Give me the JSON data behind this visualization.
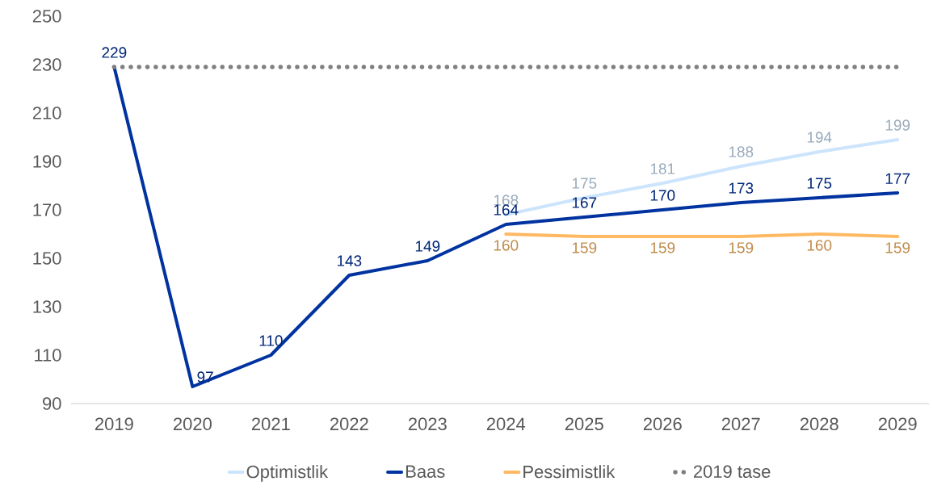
{
  "chart_data": {
    "type": "line",
    "categories": [
      "2019",
      "2020",
      "2021",
      "2022",
      "2023",
      "2024",
      "2025",
      "2026",
      "2027",
      "2028",
      "2029"
    ],
    "series": [
      {
        "name": "Optimistlik",
        "color": "#cce4fc",
        "values": [
          null,
          null,
          null,
          null,
          null,
          168,
          175,
          181,
          188,
          194,
          199
        ],
        "value_labels": [
          null,
          null,
          null,
          null,
          null,
          "168",
          "175",
          "181",
          "188",
          "194",
          "199"
        ]
      },
      {
        "name": "Baas",
        "color": "#0033a0",
        "values": [
          229,
          97,
          110,
          143,
          149,
          164,
          167,
          170,
          173,
          175,
          177
        ],
        "value_labels": [
          "229",
          "97",
          "110",
          "143",
          "149",
          "164",
          "167",
          "170",
          "173",
          "175",
          "177"
        ]
      },
      {
        "name": "Pessimistlik",
        "color": "#ffb963",
        "values": [
          null,
          null,
          null,
          null,
          null,
          160,
          159,
          159,
          159,
          160,
          159
        ],
        "value_labels": [
          null,
          null,
          null,
          null,
          null,
          "160",
          "159",
          "159",
          "159",
          "160",
          "159"
        ]
      },
      {
        "name": "2019 tase",
        "color": "#808080",
        "line_style": "dotted",
        "values": [
          229,
          229,
          229,
          229,
          229,
          229,
          229,
          229,
          229,
          229,
          229
        ]
      }
    ],
    "ylim": [
      90,
      250
    ],
    "yticks": [
      90,
      110,
      130,
      150,
      170,
      190,
      210,
      230,
      250
    ],
    "grid": false,
    "legend": "bottom",
    "marker": "none"
  }
}
